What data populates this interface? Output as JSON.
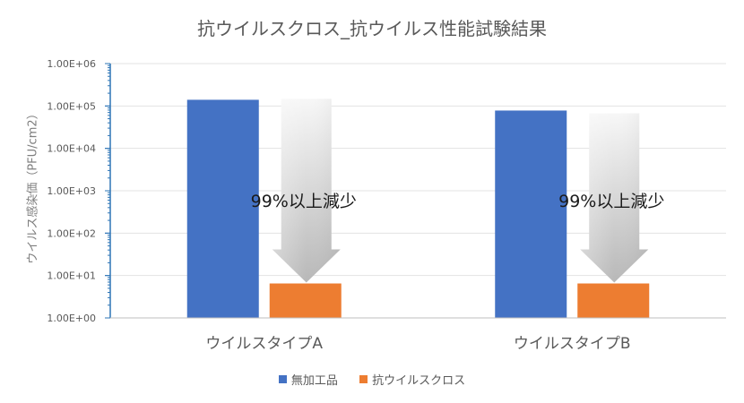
{
  "chart_data": {
    "type": "bar",
    "title": "抗ウイルスクロス_抗ウイルス性能試験結果",
    "ylabel": "ウイルス感染価（PFU/cm2）",
    "xlabel": "",
    "yscale": "log",
    "ylim": [
      1,
      1000000
    ],
    "ytick_labels": [
      "1.00E+00",
      "1.00E+01",
      "1.00E+02",
      "1.00E+03",
      "1.00E+04",
      "1.00E+05",
      "1.00E+06"
    ],
    "categories": [
      "ウイルスタイプA",
      "ウイルスタイプB"
    ],
    "series": [
      {
        "name": "無加工品",
        "color": "#4472C4",
        "values": [
          140000,
          78000
        ]
      },
      {
        "name": "抗ウイルスクロス",
        "color": "#ED7D31",
        "values": [
          6.5,
          6.5
        ]
      }
    ],
    "annotations": [
      {
        "text": "99%以上減少",
        "category": "ウイルスタイプA"
      },
      {
        "text": "99%以上減少",
        "category": "ウイルスタイプB"
      }
    ],
    "grid": true,
    "legend_position": "bottom"
  }
}
